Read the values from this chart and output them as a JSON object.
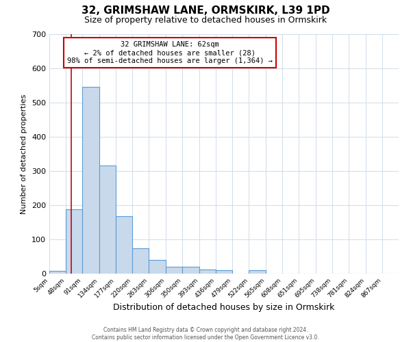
{
  "title": "32, GRIMSHAW LANE, ORMSKIRK, L39 1PD",
  "subtitle": "Size of property relative to detached houses in Ormskirk",
  "xlabel": "Distribution of detached houses by size in Ormskirk",
  "ylabel": "Number of detached properties",
  "bin_labels": [
    "5sqm",
    "48sqm",
    "91sqm",
    "134sqm",
    "177sqm",
    "220sqm",
    "263sqm",
    "306sqm",
    "350sqm",
    "393sqm",
    "436sqm",
    "479sqm",
    "522sqm",
    "565sqm",
    "608sqm",
    "651sqm",
    "695sqm",
    "738sqm",
    "781sqm",
    "824sqm",
    "867sqm"
  ],
  "bar_heights": [
    8,
    188,
    547,
    316,
    168,
    75,
    41,
    20,
    20,
    13,
    10,
    1,
    10,
    1,
    0,
    1,
    0,
    0,
    0,
    0,
    0
  ],
  "bar_color": "#c9d9ec",
  "bar_edge_color": "#5b9bd5",
  "vline_x": 62,
  "vline_color": "#cc0000",
  "annotation_text": "32 GRIMSHAW LANE: 62sqm\n← 2% of detached houses are smaller (28)\n98% of semi-detached houses are larger (1,364) →",
  "box_color": "#cc0000",
  "ylim": [
    0,
    700
  ],
  "yticks": [
    0,
    100,
    200,
    300,
    400,
    500,
    600,
    700
  ],
  "grid_color": "#d0dce8",
  "footer_line1": "Contains HM Land Registry data © Crown copyright and database right 2024.",
  "footer_line2": "Contains public sector information licensed under the Open Government Licence v3.0.",
  "bin_edges": [
    5,
    48,
    91,
    134,
    177,
    220,
    263,
    306,
    350,
    393,
    436,
    479,
    522,
    565,
    608,
    651,
    695,
    738,
    781,
    824,
    867,
    910
  ]
}
